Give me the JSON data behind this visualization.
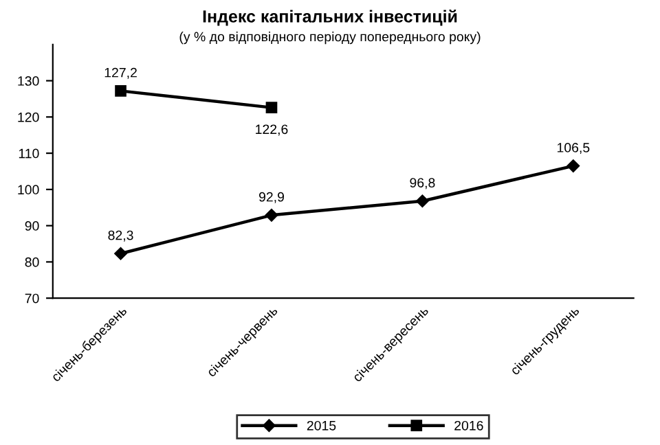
{
  "chart_data": {
    "type": "line",
    "title": "Індекс капітальних інвестицій",
    "subtitle": "(у % до відповідного періоду попереднього року)",
    "categories": [
      "січень-березень",
      "січень-червень",
      "січень-вересень",
      "січень-грудень"
    ],
    "series": [
      {
        "name": "2015",
        "color": "#000000",
        "marker": "diamond",
        "values": [
          82.3,
          92.9,
          96.8,
          106.5
        ],
        "value_labels": [
          "82,3",
          "92,9",
          "96,8",
          "106,5"
        ]
      },
      {
        "name": "2016",
        "color": "#000000",
        "marker": "square",
        "values": [
          127.2,
          122.6,
          null,
          null
        ],
        "value_labels": [
          "127,2",
          "122,6",
          null,
          null
        ]
      }
    ],
    "ylim": [
      70,
      140
    ],
    "yticks": [
      70,
      80,
      90,
      100,
      110,
      120,
      130
    ],
    "grid": false,
    "legend": "bottom",
    "line_style": "solid"
  }
}
